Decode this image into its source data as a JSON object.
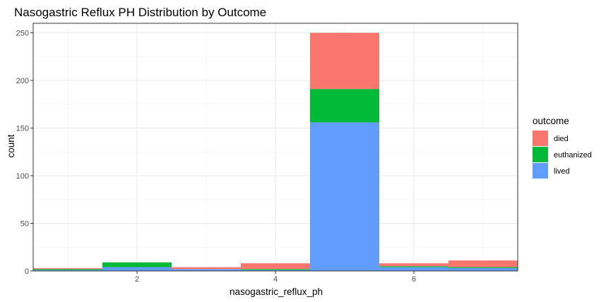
{
  "chart_data": {
    "type": "bar",
    "stacked": true,
    "title": "Nasogastric Reflux PH Distribution by Outcome",
    "xlabel": "nasogastric_reflux_ph",
    "ylabel": "count",
    "xlim": [
      0.5,
      7.5
    ],
    "ylim": [
      0,
      260
    ],
    "x_ticks": [
      2,
      4,
      6
    ],
    "y_ticks": [
      0,
      50,
      100,
      150,
      200,
      250
    ],
    "grid": true,
    "legend_position": "right",
    "legend_title": "outcome",
    "bins": [
      1,
      2,
      3,
      4,
      5,
      6,
      7
    ],
    "series": [
      {
        "name": "lived",
        "color": "#619CFF",
        "values": [
          1,
          4,
          2,
          1,
          156,
          4,
          3
        ]
      },
      {
        "name": "euthanized",
        "color": "#00BA38",
        "values": [
          1,
          5,
          0,
          1,
          35,
          1,
          1
        ]
      },
      {
        "name": "died",
        "color": "#F8766D",
        "values": [
          1,
          0,
          2,
          6,
          59,
          3,
          7
        ]
      }
    ]
  }
}
